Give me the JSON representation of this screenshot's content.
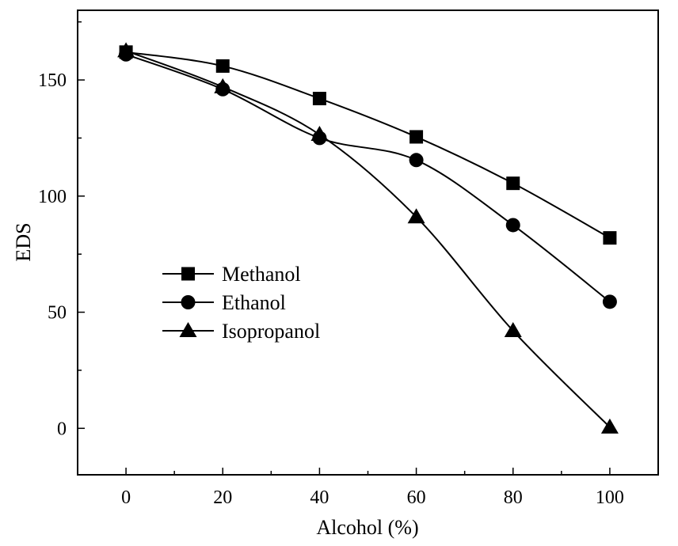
{
  "chart_data": {
    "type": "line",
    "title": "",
    "xlabel": "Alcohol (%)",
    "ylabel": "EDS",
    "x": [
      0,
      20,
      40,
      60,
      80,
      100
    ],
    "xlim": [
      -10,
      110
    ],
    "ylim": [
      -20,
      180
    ],
    "xticks": [
      0,
      20,
      40,
      60,
      80,
      100
    ],
    "yticks": [
      0,
      50,
      100,
      150
    ],
    "grid": false,
    "legend_position": "center-left",
    "series": [
      {
        "name": "Methanol",
        "marker": "square",
        "values": [
          162,
          156,
          142,
          125.5,
          105.5,
          82
        ]
      },
      {
        "name": "Ethanol",
        "marker": "circle",
        "values": [
          161,
          146,
          125,
          115.5,
          87.5,
          54.5
        ]
      },
      {
        "name": "Isopropanol",
        "marker": "triangle",
        "values": [
          162.5,
          147,
          126.5,
          91,
          42,
          0.5
        ]
      }
    ]
  }
}
